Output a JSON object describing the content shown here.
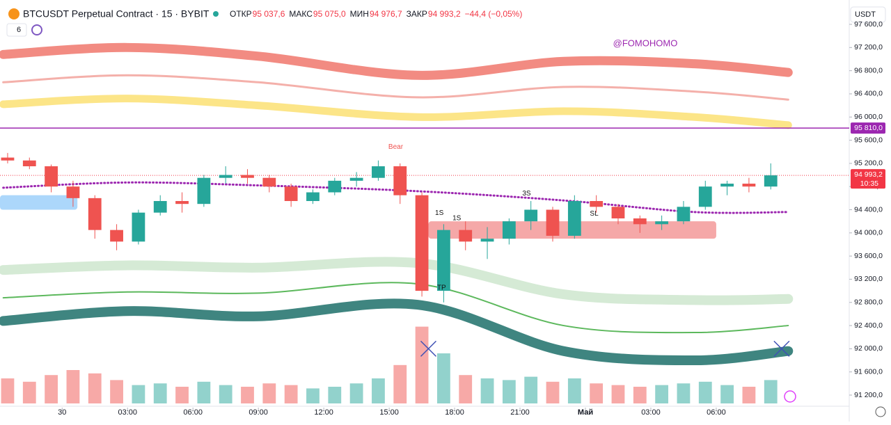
{
  "chart_data": {
    "type": "candlestick",
    "title": "BTCUSDT Perpetual Contract · 15 · BYBIT",
    "ohlc_labels": [
      {
        "name": "ОТКР",
        "value": "95 037,6"
      },
      {
        "name": "МАКС",
        "value": "95 075,0"
      },
      {
        "name": "МИН",
        "value": "94 976,7"
      },
      {
        "name": "ЗАКР",
        "value": "94 993,2"
      }
    ],
    "change": "−44,4 (−0,05%)",
    "indicator_count": "6",
    "currency": "USDT",
    "watermark": "@FOMOHOMO",
    "xlim": [
      -2.85,
      36.1
    ],
    "xticks": [
      {
        "value": 0,
        "label": "30"
      },
      {
        "value": 3,
        "label": "03:00"
      },
      {
        "value": 6,
        "label": "06:00"
      },
      {
        "value": 9,
        "label": "09:00"
      },
      {
        "value": 12,
        "label": "12:00"
      },
      {
        "value": 15,
        "label": "15:00"
      },
      {
        "value": 18,
        "label": "18:00"
      },
      {
        "value": 21,
        "label": "21:00"
      },
      {
        "value": 24,
        "label": "Май"
      },
      {
        "value": 27,
        "label": "03:00"
      },
      {
        "value": 30,
        "label": "06:00"
      }
    ],
    "ylim": [
      91200,
      97600
    ],
    "yticks": [
      {
        "value": 97600,
        "label": "97 600,0"
      },
      {
        "value": 97200,
        "label": "97 200,0"
      },
      {
        "value": 96800,
        "label": "96 800,0"
      },
      {
        "value": 96400,
        "label": "96 400,0"
      },
      {
        "value": 96000,
        "label": "96 000,0"
      },
      {
        "value": 95600,
        "label": "95 600,0"
      },
      {
        "value": 95200,
        "label": "95 200,0"
      },
      {
        "value": 94800,
        "label": "94 800,0"
      },
      {
        "value": 94400,
        "label": "94 400,0"
      },
      {
        "value": 94000,
        "label": "94 000,0"
      },
      {
        "value": 93600,
        "label": "93 600,0"
      },
      {
        "value": 93200,
        "label": "93 200,0"
      },
      {
        "value": 92800,
        "label": "92 800,0"
      },
      {
        "value": 92400,
        "label": "92 400,0"
      },
      {
        "value": 92000,
        "label": "92 000,0"
      },
      {
        "value": 91600,
        "label": "91 600,0"
      },
      {
        "value": 91200,
        "label": "91 200,0"
      }
    ],
    "up_color": "#26a69a",
    "down_color": "#ef5350",
    "x": [
      -2.5,
      -1.5,
      -0.5,
      0.5,
      1.5,
      2.5,
      3.5,
      4.5,
      5.5,
      6.5,
      7.5,
      8.5,
      9.5,
      10.5,
      11.5,
      12.5,
      13.5,
      14.5,
      15.5,
      16.5,
      17.5,
      18.5,
      19.5,
      20.5,
      21.5,
      22.5,
      23.5,
      24.5,
      25.5,
      26.5,
      27.5,
      28.5,
      29.5,
      30.5,
      31.5,
      32.5
    ],
    "open": [
      95300,
      95250,
      95150,
      94800,
      94600,
      94050,
      93850,
      94350,
      94550,
      94500,
      94950,
      95000,
      94950,
      94800,
      94550,
      94700,
      94900,
      94950,
      95150,
      94650,
      93000,
      94050,
      93850,
      93900,
      94200,
      94400,
      93950,
      94550,
      94450,
      94250,
      94150,
      94200,
      94450,
      94800,
      94850,
      94800
    ],
    "high": [
      95380,
      95300,
      95180,
      94900,
      94650,
      94150,
      94400,
      94650,
      94700,
      95000,
      95150,
      95100,
      95000,
      94850,
      94750,
      94950,
      95050,
      95250,
      95200,
      94700,
      94150,
      94200,
      94100,
      94250,
      94550,
      94450,
      94650,
      94650,
      94500,
      94300,
      94300,
      94550,
      94900,
      94900,
      94950,
      95200
    ],
    "low": [
      95200,
      95100,
      94700,
      94450,
      93900,
      93700,
      93800,
      94300,
      94350,
      94450,
      94850,
      94850,
      94700,
      94450,
      94500,
      94650,
      94800,
      94900,
      94500,
      92900,
      92800,
      93700,
      93550,
      93800,
      94050,
      93850,
      93900,
      94350,
      94150,
      94000,
      94050,
      94150,
      94400,
      94650,
      94700,
      94750
    ],
    "close": [
      95250,
      95150,
      94800,
      94600,
      94050,
      93850,
      94350,
      94550,
      94500,
      94950,
      95000,
      94950,
      94800,
      94550,
      94700,
      94900,
      94950,
      95150,
      94650,
      93000,
      94050,
      93850,
      93900,
      94200,
      94400,
      93950,
      94550,
      94450,
      94250,
      94150,
      94200,
      94450,
      94800,
      94850,
      94800,
      94993.2
    ],
    "volume_lim": [
      0,
      100
    ],
    "volume": [
      30,
      26,
      34,
      40,
      36,
      28,
      22,
      24,
      20,
      26,
      22,
      20,
      24,
      22,
      18,
      20,
      24,
      30,
      46,
      92,
      60,
      34,
      30,
      28,
      32,
      26,
      30,
      24,
      22,
      20,
      22,
      24,
      26,
      22,
      20,
      28
    ],
    "band_x": [
      -2.7,
      3,
      9,
      16.3,
      23,
      29,
      33.3
    ],
    "bands": [
      {
        "color": "#f28b82",
        "width": 13,
        "values": [
          97080,
          97200,
          97050,
          96720,
          96960,
          96920,
          96770
        ]
      },
      {
        "color": "#f4b0aa",
        "width": 3,
        "values": [
          96600,
          96720,
          96600,
          96340,
          96520,
          96440,
          96300
        ]
      },
      {
        "color": "#fce588",
        "width": 11,
        "values": [
          96220,
          96320,
          96200,
          96000,
          96100,
          96000,
          95860
        ]
      },
      {
        "color": "#d5ead5",
        "width": 14,
        "values": [
          93360,
          93440,
          93400,
          93480,
          92940,
          92840,
          92860
        ]
      },
      {
        "color": "#5cb85c",
        "width": 2,
        "values": [
          92880,
          92980,
          92960,
          93120,
          92400,
          92280,
          92400
        ]
      },
      {
        "color": "#3f8580",
        "width": 14,
        "values": [
          92480,
          92650,
          92560,
          92760,
          91960,
          91800,
          91960
        ]
      }
    ],
    "trend_line": {
      "color": "#9c27b0",
      "values": [
        94780,
        94870,
        94820,
        94720,
        94560,
        94360,
        94360
      ]
    },
    "zones": [
      {
        "color": "#90caf9",
        "x": [
          -2.85,
          0.7
        ],
        "y": [
          94400,
          94650
        ]
      },
      {
        "color": "#f28b8b",
        "x": [
          16.8,
          30
        ],
        "y": [
          93900,
          94200
        ]
      }
    ],
    "level": {
      "value": 95810,
      "label": "95 810,0",
      "color": "#9c27b0"
    },
    "last_price": {
      "value": 94993.2,
      "label": "94 993,2",
      "countdown": "10:35",
      "color": "#f23645"
    },
    "annotations": [
      {
        "text": "Bear",
        "x": 15.3,
        "y": 95480,
        "color": "#ef5350"
      },
      {
        "text": "1S",
        "x": 17.3,
        "y": 94340,
        "color": "#111111"
      },
      {
        "text": "1S",
        "x": 18.1,
        "y": 94250,
        "color": "#111111"
      },
      {
        "text": "3S",
        "x": 21.3,
        "y": 94680,
        "color": "#111111"
      },
      {
        "text": "SL",
        "x": 24.4,
        "y": 94330,
        "color": "#111111"
      },
      {
        "text": "TP",
        "x": 17.4,
        "y": 93050,
        "color": "#111111"
      }
    ],
    "crosses": [
      {
        "x": 16.8,
        "y": 92000
      },
      {
        "x": 33.0,
        "y": 92000
      }
    ]
  }
}
